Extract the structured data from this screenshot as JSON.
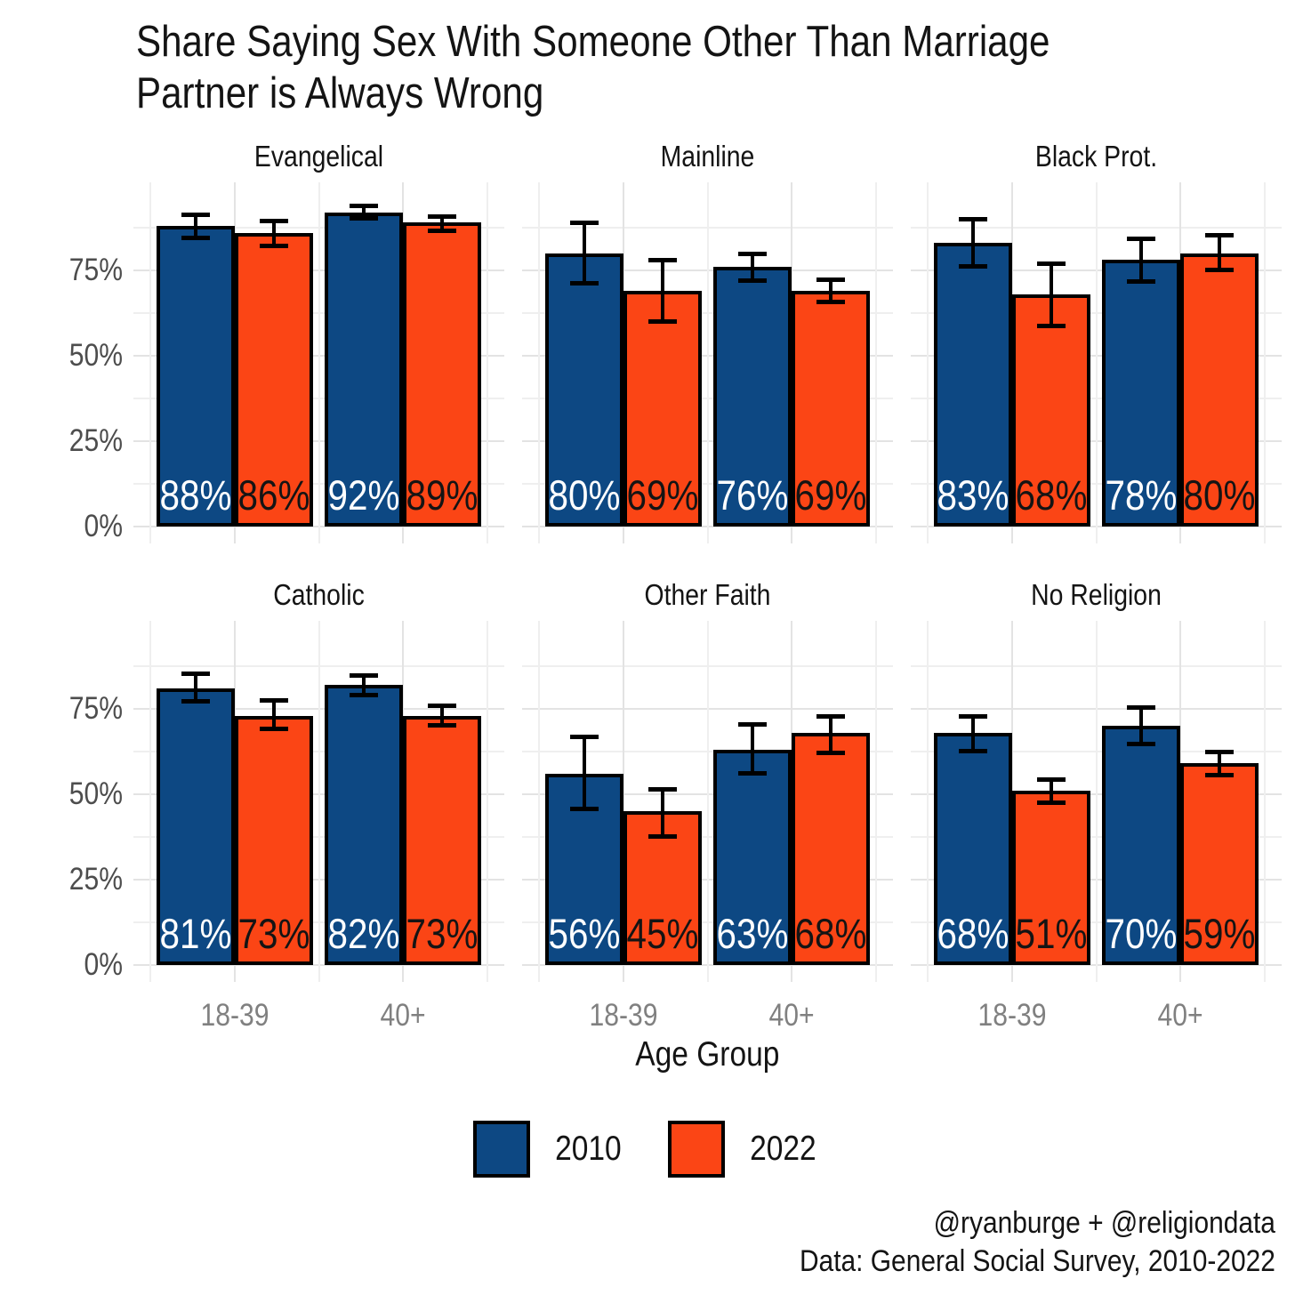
{
  "chart_data": {
    "type": "bar",
    "title": "Share Saying Sex With Someone Other Than Marriage Partner is Always Wrong",
    "title_lines": [
      "Share Saying Sex With Someone Other Than Marriage",
      "Partner is Always Wrong"
    ],
    "xlabel": "Age Group",
    "ylabel": "",
    "grid": "on",
    "legend_position": "bottom",
    "ylim": [
      0,
      101
    ],
    "y_ticks": [
      {
        "label": "0%",
        "value": 0
      },
      {
        "label": "25%",
        "value": 25
      },
      {
        "label": "50%",
        "value": 50
      },
      {
        "label": "75%",
        "value": 75
      }
    ],
    "y_minor_ticks": [
      12.5,
      37.5,
      62.5,
      87.5
    ],
    "categories": [
      "18-39",
      "40+"
    ],
    "series": [
      {
        "name": "2010",
        "color": "#0D4883"
      },
      {
        "name": "2022",
        "color": "#FB4515"
      }
    ],
    "facets": [
      {
        "label": "Evangelical",
        "bars": [
          {
            "category": "18-39",
            "series": "2010",
            "value": 88,
            "label": "88%",
            "error_low": 84.5,
            "error_high": 91.5
          },
          {
            "category": "18-39",
            "series": "2022",
            "value": 86,
            "label": "86%",
            "error_low": 82,
            "error_high": 89.5
          },
          {
            "category": "40+",
            "series": "2010",
            "value": 92,
            "label": "92%",
            "error_low": 90,
            "error_high": 94
          },
          {
            "category": "40+",
            "series": "2022",
            "value": 89,
            "label": "89%",
            "error_low": 86.5,
            "error_high": 91
          }
        ]
      },
      {
        "label": "Mainline",
        "bars": [
          {
            "category": "18-39",
            "series": "2010",
            "value": 80,
            "label": "80%",
            "error_low": 71,
            "error_high": 89
          },
          {
            "category": "18-39",
            "series": "2022",
            "value": 69,
            "label": "69%",
            "error_low": 60,
            "error_high": 78
          },
          {
            "category": "40+",
            "series": "2010",
            "value": 76,
            "label": "76%",
            "error_low": 72,
            "error_high": 80
          },
          {
            "category": "40+",
            "series": "2022",
            "value": 69,
            "label": "69%",
            "error_low": 65.5,
            "error_high": 72.5
          }
        ]
      },
      {
        "label": "Black Prot.",
        "bars": [
          {
            "category": "18-39",
            "series": "2010",
            "value": 83,
            "label": "83%",
            "error_low": 76,
            "error_high": 90
          },
          {
            "category": "18-39",
            "series": "2022",
            "value": 68,
            "label": "68%",
            "error_low": 58.5,
            "error_high": 77
          },
          {
            "category": "40+",
            "series": "2010",
            "value": 78,
            "label": "78%",
            "error_low": 71.5,
            "error_high": 84.5
          },
          {
            "category": "40+",
            "series": "2022",
            "value": 80,
            "label": "80%",
            "error_low": 75,
            "error_high": 85.5
          }
        ]
      },
      {
        "label": "Catholic",
        "bars": [
          {
            "category": "18-39",
            "series": "2010",
            "value": 81,
            "label": "81%",
            "error_low": 77,
            "error_high": 85.5
          },
          {
            "category": "18-39",
            "series": "2022",
            "value": 73,
            "label": "73%",
            "error_low": 69,
            "error_high": 77.5
          },
          {
            "category": "40+",
            "series": "2010",
            "value": 82,
            "label": "82%",
            "error_low": 79,
            "error_high": 85
          },
          {
            "category": "40+",
            "series": "2022",
            "value": 73,
            "label": "73%",
            "error_low": 70,
            "error_high": 76
          }
        ]
      },
      {
        "label": "Other Faith",
        "bars": [
          {
            "category": "18-39",
            "series": "2010",
            "value": 56,
            "label": "56%",
            "error_low": 45.5,
            "error_high": 67
          },
          {
            "category": "18-39",
            "series": "2022",
            "value": 45,
            "label": "45%",
            "error_low": 37.5,
            "error_high": 51.5
          },
          {
            "category": "40+",
            "series": "2010",
            "value": 63,
            "label": "63%",
            "error_low": 56,
            "error_high": 70.5
          },
          {
            "category": "40+",
            "series": "2022",
            "value": 68,
            "label": "68%",
            "error_low": 62,
            "error_high": 73
          }
        ]
      },
      {
        "label": "No Religion",
        "bars": [
          {
            "category": "18-39",
            "series": "2010",
            "value": 68,
            "label": "68%",
            "error_low": 62.5,
            "error_high": 73
          },
          {
            "category": "18-39",
            "series": "2022",
            "value": 51,
            "label": "51%",
            "error_low": 47.5,
            "error_high": 54.5
          },
          {
            "category": "40+",
            "series": "2010",
            "value": 70,
            "label": "70%",
            "error_low": 64.5,
            "error_high": 75.5
          },
          {
            "category": "40+",
            "series": "2022",
            "value": 59,
            "label": "59%",
            "error_low": 55.5,
            "error_high": 62.5
          }
        ]
      }
    ]
  },
  "legend": {
    "items": [
      {
        "label": "2010",
        "color": "#0D4883"
      },
      {
        "label": "2022",
        "color": "#FB4515"
      }
    ]
  },
  "footer": {
    "credit": "@ryanburge + @religiondata",
    "source": "Data: General Social Survey, 2010-2022"
  }
}
